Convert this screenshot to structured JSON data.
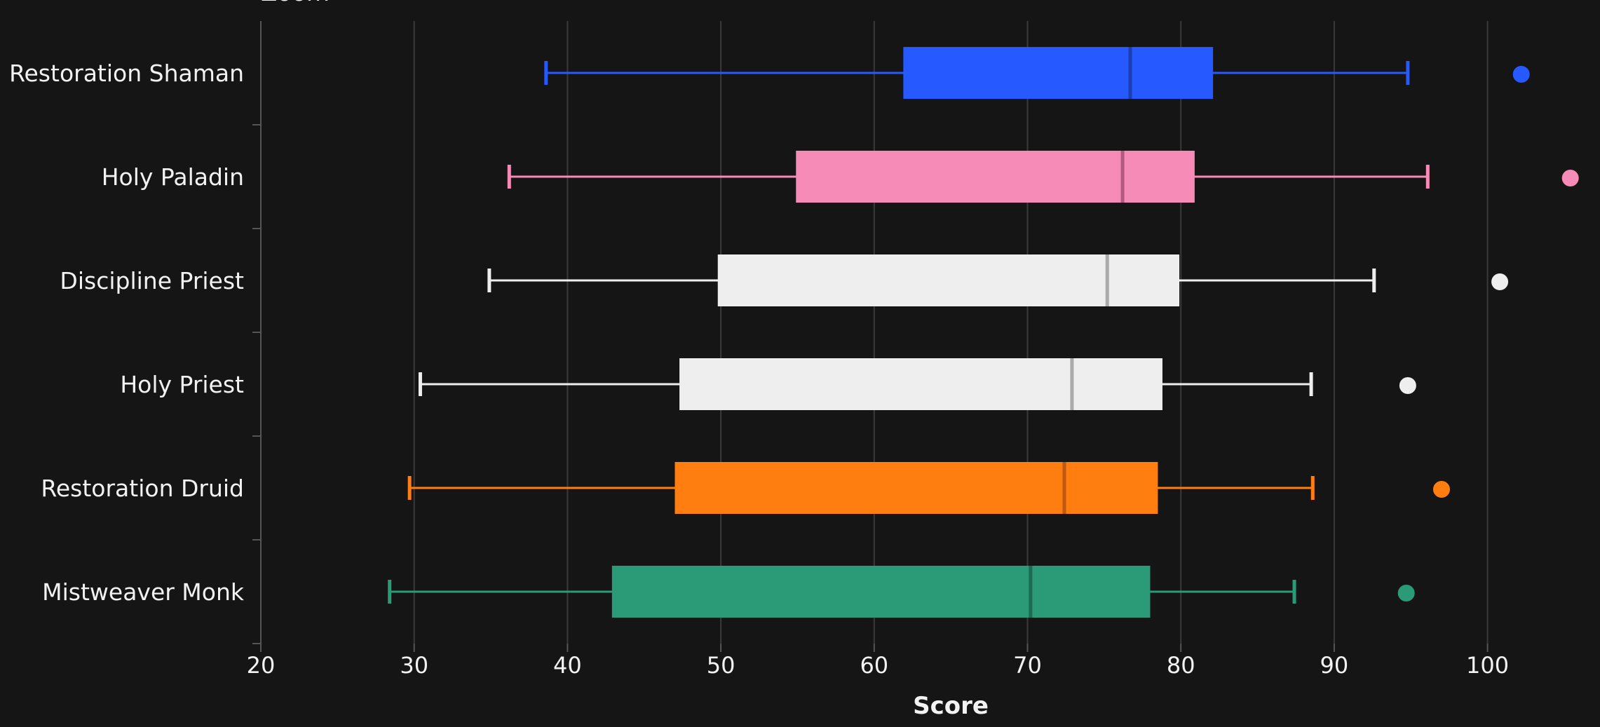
{
  "header": {
    "zoom_label": "Zoom"
  },
  "colors": {
    "background": "#151515",
    "grid": "#3a3a3a",
    "axis": "#555555",
    "text": "#f2f2f2"
  },
  "chart_data": {
    "type": "boxplot",
    "orientation": "horizontal",
    "xlabel": "Score",
    "xlim": [
      20,
      105
    ],
    "xticks": [
      20,
      30,
      40,
      50,
      60,
      70,
      80,
      90,
      100
    ],
    "grid": true,
    "series": [
      {
        "name": "Restoration Shaman",
        "color": "#2659ff",
        "median_color": "#1a3fb0",
        "whisker_low": 38.6,
        "q1": 61.9,
        "median": 76.7,
        "q3": 82.1,
        "whisker_high": 94.8,
        "outliers": [
          102.2
        ]
      },
      {
        "name": "Holy Paladin",
        "color": "#f78bb8",
        "median_color": "#b35a82",
        "whisker_low": 36.2,
        "q1": 54.9,
        "median": 76.2,
        "q3": 80.9,
        "whisker_high": 96.1,
        "outliers": [
          105.4
        ]
      },
      {
        "name": "Discipline Priest",
        "color": "#eeeeee",
        "median_color": "#aaaaaa",
        "whisker_low": 34.9,
        "q1": 49.8,
        "median": 75.2,
        "q3": 79.9,
        "whisker_high": 92.6,
        "outliers": [
          100.8
        ]
      },
      {
        "name": "Holy Priest",
        "color": "#eeeeee",
        "median_color": "#aaaaaa",
        "whisker_low": 30.4,
        "q1": 47.3,
        "median": 72.9,
        "q3": 78.8,
        "whisker_high": 88.5,
        "outliers": [
          94.8
        ]
      },
      {
        "name": "Restoration Druid",
        "color": "#ff7e0f",
        "median_color": "#bb5a10",
        "whisker_low": 29.7,
        "q1": 47.0,
        "median": 72.4,
        "q3": 78.5,
        "whisker_high": 88.6,
        "outliers": [
          97.0
        ]
      },
      {
        "name": "Mistweaver Monk",
        "color": "#2b9b77",
        "median_color": "#1d6b53",
        "whisker_low": 28.4,
        "q1": 42.9,
        "median": 70.2,
        "q3": 78.0,
        "whisker_high": 87.4,
        "outliers": [
          94.7
        ]
      }
    ]
  }
}
